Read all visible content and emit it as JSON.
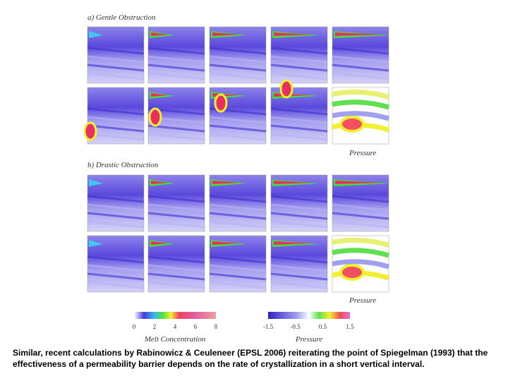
{
  "figure": {
    "panel_a_label": "a) Gentle Obstruction",
    "panel_b_label": "b) Drastic Obstruction",
    "pressure_labels": [
      "Pressure",
      "Pressure"
    ],
    "colorbars": [
      {
        "title": "Melt Concentration",
        "ticks": [
          "0",
          "2",
          "4",
          "6",
          "8"
        ]
      },
      {
        "title": "Pressure",
        "ticks": [
          "-1.5",
          "-0.5",
          "0.5",
          "1.5"
        ]
      }
    ]
  },
  "caption": "Similar, recent calculations by Rabinowicz & Ceuleneer (EPSL 2006) reiterating the point of Spiegelman (1993) that the effectiveness of a permeability barrier depends on the rate of crystallization in a short vertical interval."
}
